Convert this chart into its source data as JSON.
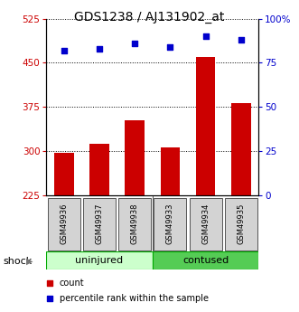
{
  "title": "GDS1238 / AJ131902_at",
  "categories": [
    "GSM49936",
    "GSM49937",
    "GSM49938",
    "GSM49933",
    "GSM49934",
    "GSM49935"
  ],
  "count_values": [
    296,
    312,
    352,
    306,
    460,
    382
  ],
  "percentile_values": [
    82,
    83,
    86,
    84,
    90,
    88
  ],
  "bar_color": "#cc0000",
  "dot_color": "#0000cc",
  "ylim_left": [
    225,
    525
  ],
  "ylim_right": [
    0,
    100
  ],
  "yticks_left": [
    225,
    300,
    375,
    450,
    525
  ],
  "yticks_right": [
    0,
    25,
    50,
    75,
    100
  ],
  "ytick_labels_right": [
    "0",
    "25",
    "50",
    "75",
    "100%"
  ],
  "group1_label": "uninjured",
  "group2_label": "contused",
  "group1_color": "#ccffcc",
  "group2_color": "#55cc55",
  "shock_label": "shock",
  "arrow": "▶",
  "legend_count": "count",
  "legend_pct": "percentile rank within the sample",
  "bar_color_left": "#cc0000",
  "dot_color_right": "#0000cc",
  "title_fontsize": 10,
  "tick_fontsize": 7.5,
  "label_fontsize": 8,
  "sample_fontsize": 6,
  "group_fontsize": 8
}
